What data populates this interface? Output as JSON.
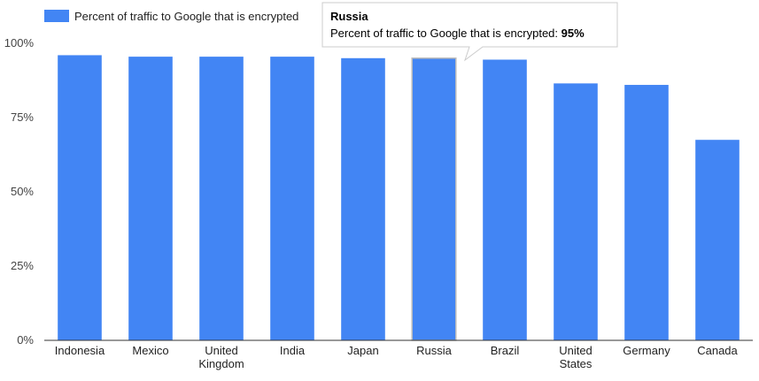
{
  "chart_data": {
    "type": "bar",
    "categories": [
      "Indonesia",
      "Mexico",
      "United Kingdom",
      "India",
      "Japan",
      "Russia",
      "Brazil",
      "United States",
      "Germany",
      "Canada"
    ],
    "category_lines": [
      [
        "Indonesia"
      ],
      [
        "Mexico"
      ],
      [
        "United",
        "Kingdom"
      ],
      [
        "India"
      ],
      [
        "Japan"
      ],
      [
        "Russia"
      ],
      [
        "Brazil"
      ],
      [
        "United",
        "States"
      ],
      [
        "Germany"
      ],
      [
        "Canada"
      ]
    ],
    "series": [
      {
        "name": "Percent of traffic to Google that is encrypted",
        "values": [
          96,
          95.5,
          95.5,
          95.5,
          95,
          95,
          94.5,
          86.5,
          86,
          67.5
        ]
      }
    ],
    "y_ticks": [
      "0%",
      "25%",
      "50%",
      "75%",
      "100%"
    ],
    "ylim": [
      0,
      100
    ],
    "grid": false,
    "legend_position": "top-left",
    "colors": {
      "bar": "#4285f4",
      "highlight_outline": "#bbbbbb",
      "axis": "#333333"
    }
  },
  "tooltip": {
    "category": "Russia",
    "text": "Percent of traffic to Google that is encrypted: ",
    "value": "95%"
  }
}
